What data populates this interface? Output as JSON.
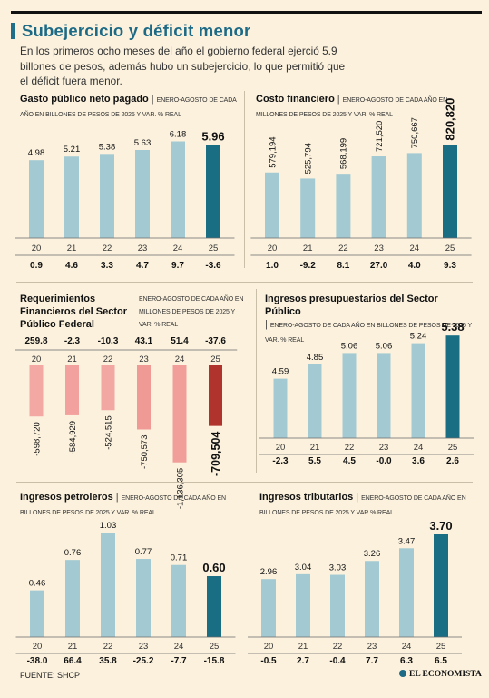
{
  "header": {
    "title": "Subejercicio y déficit menor",
    "subtitle": "En los primeros ocho meses del año el gobierno federal ejerció 5.9 billones de pesos, además hubo un subejercicio, lo que permitió que el déficit fuera menor."
  },
  "footer": {
    "source": "FUENTE: SHCP",
    "brand": "EL ECONOMISTA"
  },
  "colors": {
    "teal": "#1a6e84",
    "lightblue": "#a3cad3",
    "red": "#b33a33",
    "pink": "#f2a3a0",
    "background": "#fbf1dd"
  },
  "chart_data": [
    {
      "type": "bar",
      "name": "Gasto público neto pagado",
      "description": "ENERO-AGOSTO DE CADA AÑO EN BILLONES DE PESOS DE 2025 Y VAR. % REAL",
      "categories": [
        "20",
        "21",
        "22",
        "23",
        "24",
        "25"
      ],
      "values": [
        4.98,
        5.21,
        5.38,
        5.63,
        6.18,
        5.96
      ],
      "value_labels": [
        "4.98",
        "5.21",
        "5.38",
        "5.63",
        "6.18",
        "5.96"
      ],
      "var_real": [
        "0.9",
        "4.6",
        "3.3",
        "4.7",
        "9.7",
        "-3.6"
      ],
      "ylim": [
        0,
        6.5
      ]
    },
    {
      "type": "bar",
      "name": "Costo financiero",
      "description": "ENERO-AGOSTO DE CADA AÑO EN MILLONES DE PESOS DE 2025 Y VAR. % REAL",
      "categories": [
        "20",
        "21",
        "22",
        "23",
        "24",
        "25"
      ],
      "values": [
        579194,
        525794,
        568199,
        721520,
        750667,
        820820
      ],
      "value_labels": [
        "579,194",
        "525,794",
        "568,199",
        "721,520",
        "750,667",
        "820,820"
      ],
      "var_real": [
        "1.0",
        "-9.2",
        "8.1",
        "27.0",
        "4.0",
        "9.3"
      ],
      "ylim": [
        0,
        850000
      ]
    },
    {
      "type": "bar",
      "name": "Requerimientos Financieros del Sector Público Federal",
      "description": "ENERO-AGOSTO DE CADA AÑO EN MILLONES DE PESOS DE 2025 Y VAR. % REAL",
      "categories": [
        "20",
        "21",
        "22",
        "23",
        "24",
        "25"
      ],
      "values": [
        -598720,
        -584929,
        -524515,
        -750573,
        -1136305,
        -709504
      ],
      "value_labels": [
        "-598,720",
        "-584,929",
        "-524,515",
        "-750,573",
        "-1,136,305",
        "-709,504"
      ],
      "var_real": [
        "259.8",
        "-2.3",
        "-10.3",
        "43.1",
        "51.4",
        "-37.6"
      ],
      "ylim": [
        -1150000,
        0
      ]
    },
    {
      "type": "bar",
      "name": "Ingresos presupuestarios del Sector Público",
      "description": "ENERO-AGOSTO DE CADA AÑO EN BILLONES DE PESOS DE 2025 Y VAR. % REAL",
      "categories": [
        "20",
        "21",
        "22",
        "23",
        "24",
        "25"
      ],
      "values": [
        4.59,
        4.85,
        5.06,
        5.06,
        5.24,
        5.38
      ],
      "value_labels": [
        "4.59",
        "4.85",
        "5.06",
        "5.06",
        "5.24",
        "5.38"
      ],
      "var_real": [
        "-2.3",
        "5.5",
        "4.5",
        "-0.0",
        "3.6",
        "2.6"
      ],
      "ylim": [
        3.5,
        5.4
      ]
    },
    {
      "type": "bar",
      "name": "Ingresos petroleros",
      "description": "ENERO-AGOSTO DE CADA AÑO EN BILLONES DE PESOS DE 2025 Y VAR. % REAL",
      "categories": [
        "20",
        "21",
        "22",
        "23",
        "24",
        "25"
      ],
      "values": [
        0.46,
        0.76,
        1.03,
        0.77,
        0.71,
        0.6
      ],
      "value_labels": [
        "0.46",
        "0.76",
        "1.03",
        "0.77",
        "0.71",
        "0.60"
      ],
      "var_real": [
        "-38.0",
        "66.4",
        "35.8",
        "-25.2",
        "-7.7",
        "-15.8"
      ],
      "ylim": [
        0,
        1.03
      ]
    },
    {
      "type": "bar",
      "name": "Ingresos tributarios",
      "description": "ENERO-AGOSTO DE CADA AÑO EN BILLONES DE PESOS DE 2025 Y VAR % REAL",
      "categories": [
        "20",
        "21",
        "22",
        "23",
        "24",
        "25"
      ],
      "values": [
        2.96,
        3.04,
        3.03,
        3.26,
        3.47,
        3.7
      ],
      "value_labels": [
        "2.96",
        "3.04",
        "3.03",
        "3.26",
        "3.47",
        "3.70"
      ],
      "var_real": [
        "-0.5",
        "2.7",
        "-0.4",
        "7.7",
        "6.3",
        "6.5"
      ],
      "ylim": [
        2.0,
        3.7
      ]
    }
  ]
}
